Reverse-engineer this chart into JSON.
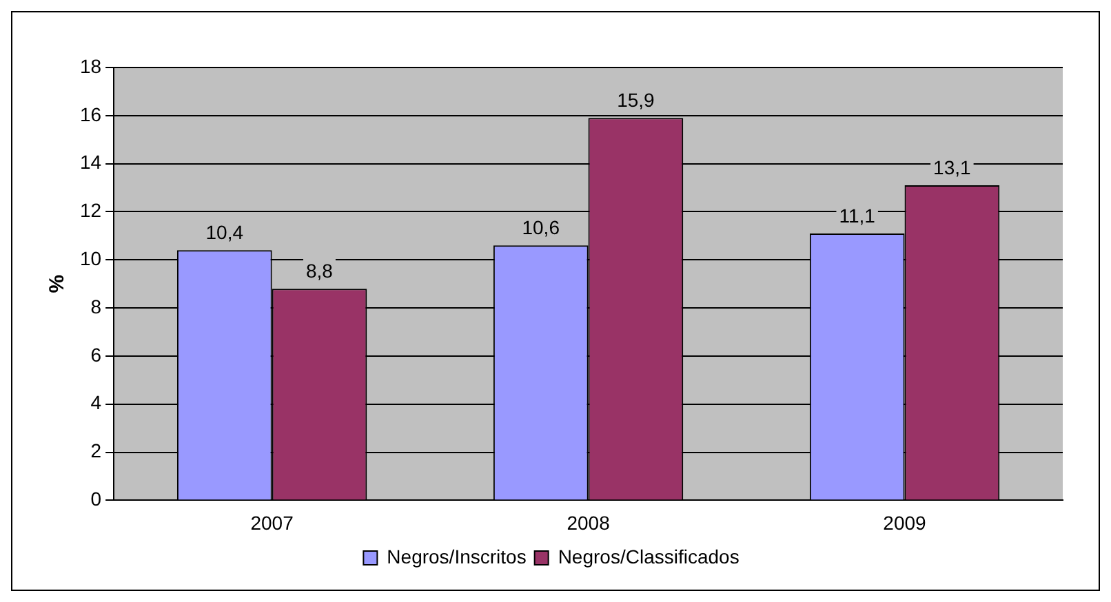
{
  "chart_data": {
    "type": "bar",
    "ylabel": "%",
    "categories": [
      "2007",
      "2008",
      "2009"
    ],
    "series": [
      {
        "name": "Negros/Inscritos",
        "color": "#9999ff",
        "values": [
          10.4,
          10.6,
          11.1
        ],
        "value_labels": [
          "10,4",
          "10,6",
          "11,1"
        ]
      },
      {
        "name": "Negros/Classificados",
        "color": "#993366",
        "values": [
          8.8,
          15.9,
          13.1
        ],
        "value_labels": [
          "8,8",
          "15,9",
          "13,1"
        ]
      }
    ],
    "ylim": [
      0,
      18
    ],
    "yticks": [
      0,
      2,
      4,
      6,
      8,
      10,
      12,
      14,
      16,
      18
    ],
    "grid": "y",
    "legend": "bottom"
  }
}
